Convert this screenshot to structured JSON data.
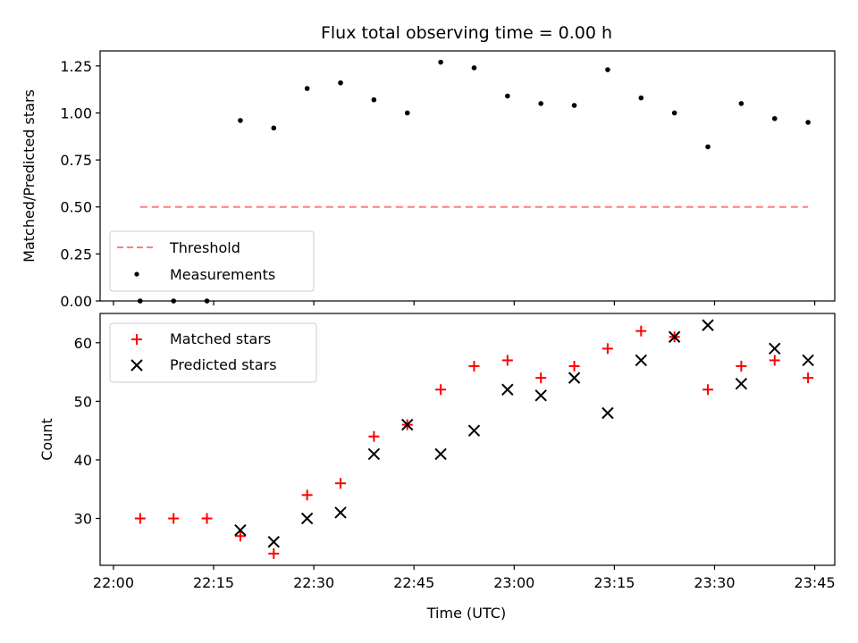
{
  "chart_data": [
    {
      "type": "line",
      "title": "Flux total observing time = 0.00 h",
      "xlabel": "",
      "ylabel": "Matched/Predicted stars",
      "xlim": [
        "21:58",
        "23:48"
      ],
      "ylim": [
        0,
        1.33
      ],
      "x_ticks": [
        "22:00",
        "22:15",
        "22:30",
        "22:45",
        "23:00",
        "23:15",
        "23:30",
        "23:45"
      ],
      "y_ticks": [
        "0.00",
        "0.25",
        "0.50",
        "0.75",
        "1.00",
        "1.25"
      ],
      "grid": false,
      "legend_position": "lower-left",
      "series": [
        {
          "name": "Threshold",
          "type": "line",
          "style": "dashed",
          "color": "#ff7f7f",
          "x": [
            "22:04",
            "23:44"
          ],
          "y": [
            0.5,
            0.5
          ]
        },
        {
          "name": "Measurements",
          "type": "scatter",
          "marker": "dot",
          "color": "#000000",
          "x": [
            "22:04",
            "22:09",
            "22:14",
            "22:19",
            "22:24",
            "22:29",
            "22:34",
            "22:39",
            "22:44",
            "22:49",
            "22:54",
            "22:59",
            "23:04",
            "23:09",
            "23:14",
            "23:19",
            "23:24",
            "23:29",
            "23:34",
            "23:39",
            "23:44"
          ],
          "y": [
            0.0,
            0.0,
            0.0,
            0.96,
            0.92,
            1.13,
            1.16,
            1.07,
            1.0,
            1.27,
            1.24,
            1.09,
            1.05,
            1.04,
            1.23,
            1.08,
            1.0,
            0.82,
            1.05,
            0.97,
            0.95
          ]
        }
      ]
    },
    {
      "type": "scatter",
      "title": "",
      "xlabel": "Time (UTC)",
      "ylabel": "Count",
      "xlim": [
        "21:58",
        "23:48"
      ],
      "ylim": [
        22,
        65
      ],
      "x_ticks": [
        "22:00",
        "22:15",
        "22:30",
        "22:45",
        "23:00",
        "23:15",
        "23:30",
        "23:45"
      ],
      "y_ticks": [
        "30",
        "40",
        "50",
        "60"
      ],
      "grid": false,
      "legend_position": "upper-left",
      "series": [
        {
          "name": "Matched stars",
          "type": "scatter",
          "marker": "plus",
          "color": "#ff0000",
          "x": [
            "22:04",
            "22:09",
            "22:14",
            "22:19",
            "22:24",
            "22:29",
            "22:34",
            "22:39",
            "22:44",
            "22:49",
            "22:54",
            "22:59",
            "23:04",
            "23:09",
            "23:14",
            "23:19",
            "23:24",
            "23:29",
            "23:34",
            "23:39",
            "23:44"
          ],
          "y": [
            30,
            30,
            30,
            27,
            24,
            34,
            36,
            44,
            46,
            52,
            56,
            57,
            54,
            56,
            59,
            62,
            61,
            52,
            56,
            57,
            54
          ]
        },
        {
          "name": "Predicted stars",
          "type": "scatter",
          "marker": "x",
          "color": "#000000",
          "x": [
            "22:19",
            "22:24",
            "22:29",
            "22:34",
            "22:39",
            "22:44",
            "22:49",
            "22:54",
            "22:59",
            "23:04",
            "23:09",
            "23:14",
            "23:19",
            "23:24",
            "23:29",
            "23:34",
            "23:39",
            "23:44"
          ],
          "y": [
            28,
            26,
            30,
            31,
            41,
            46,
            41,
            45,
            52,
            51,
            54,
            48,
            57,
            61,
            63,
            53,
            59,
            57
          ]
        }
      ]
    }
  ]
}
